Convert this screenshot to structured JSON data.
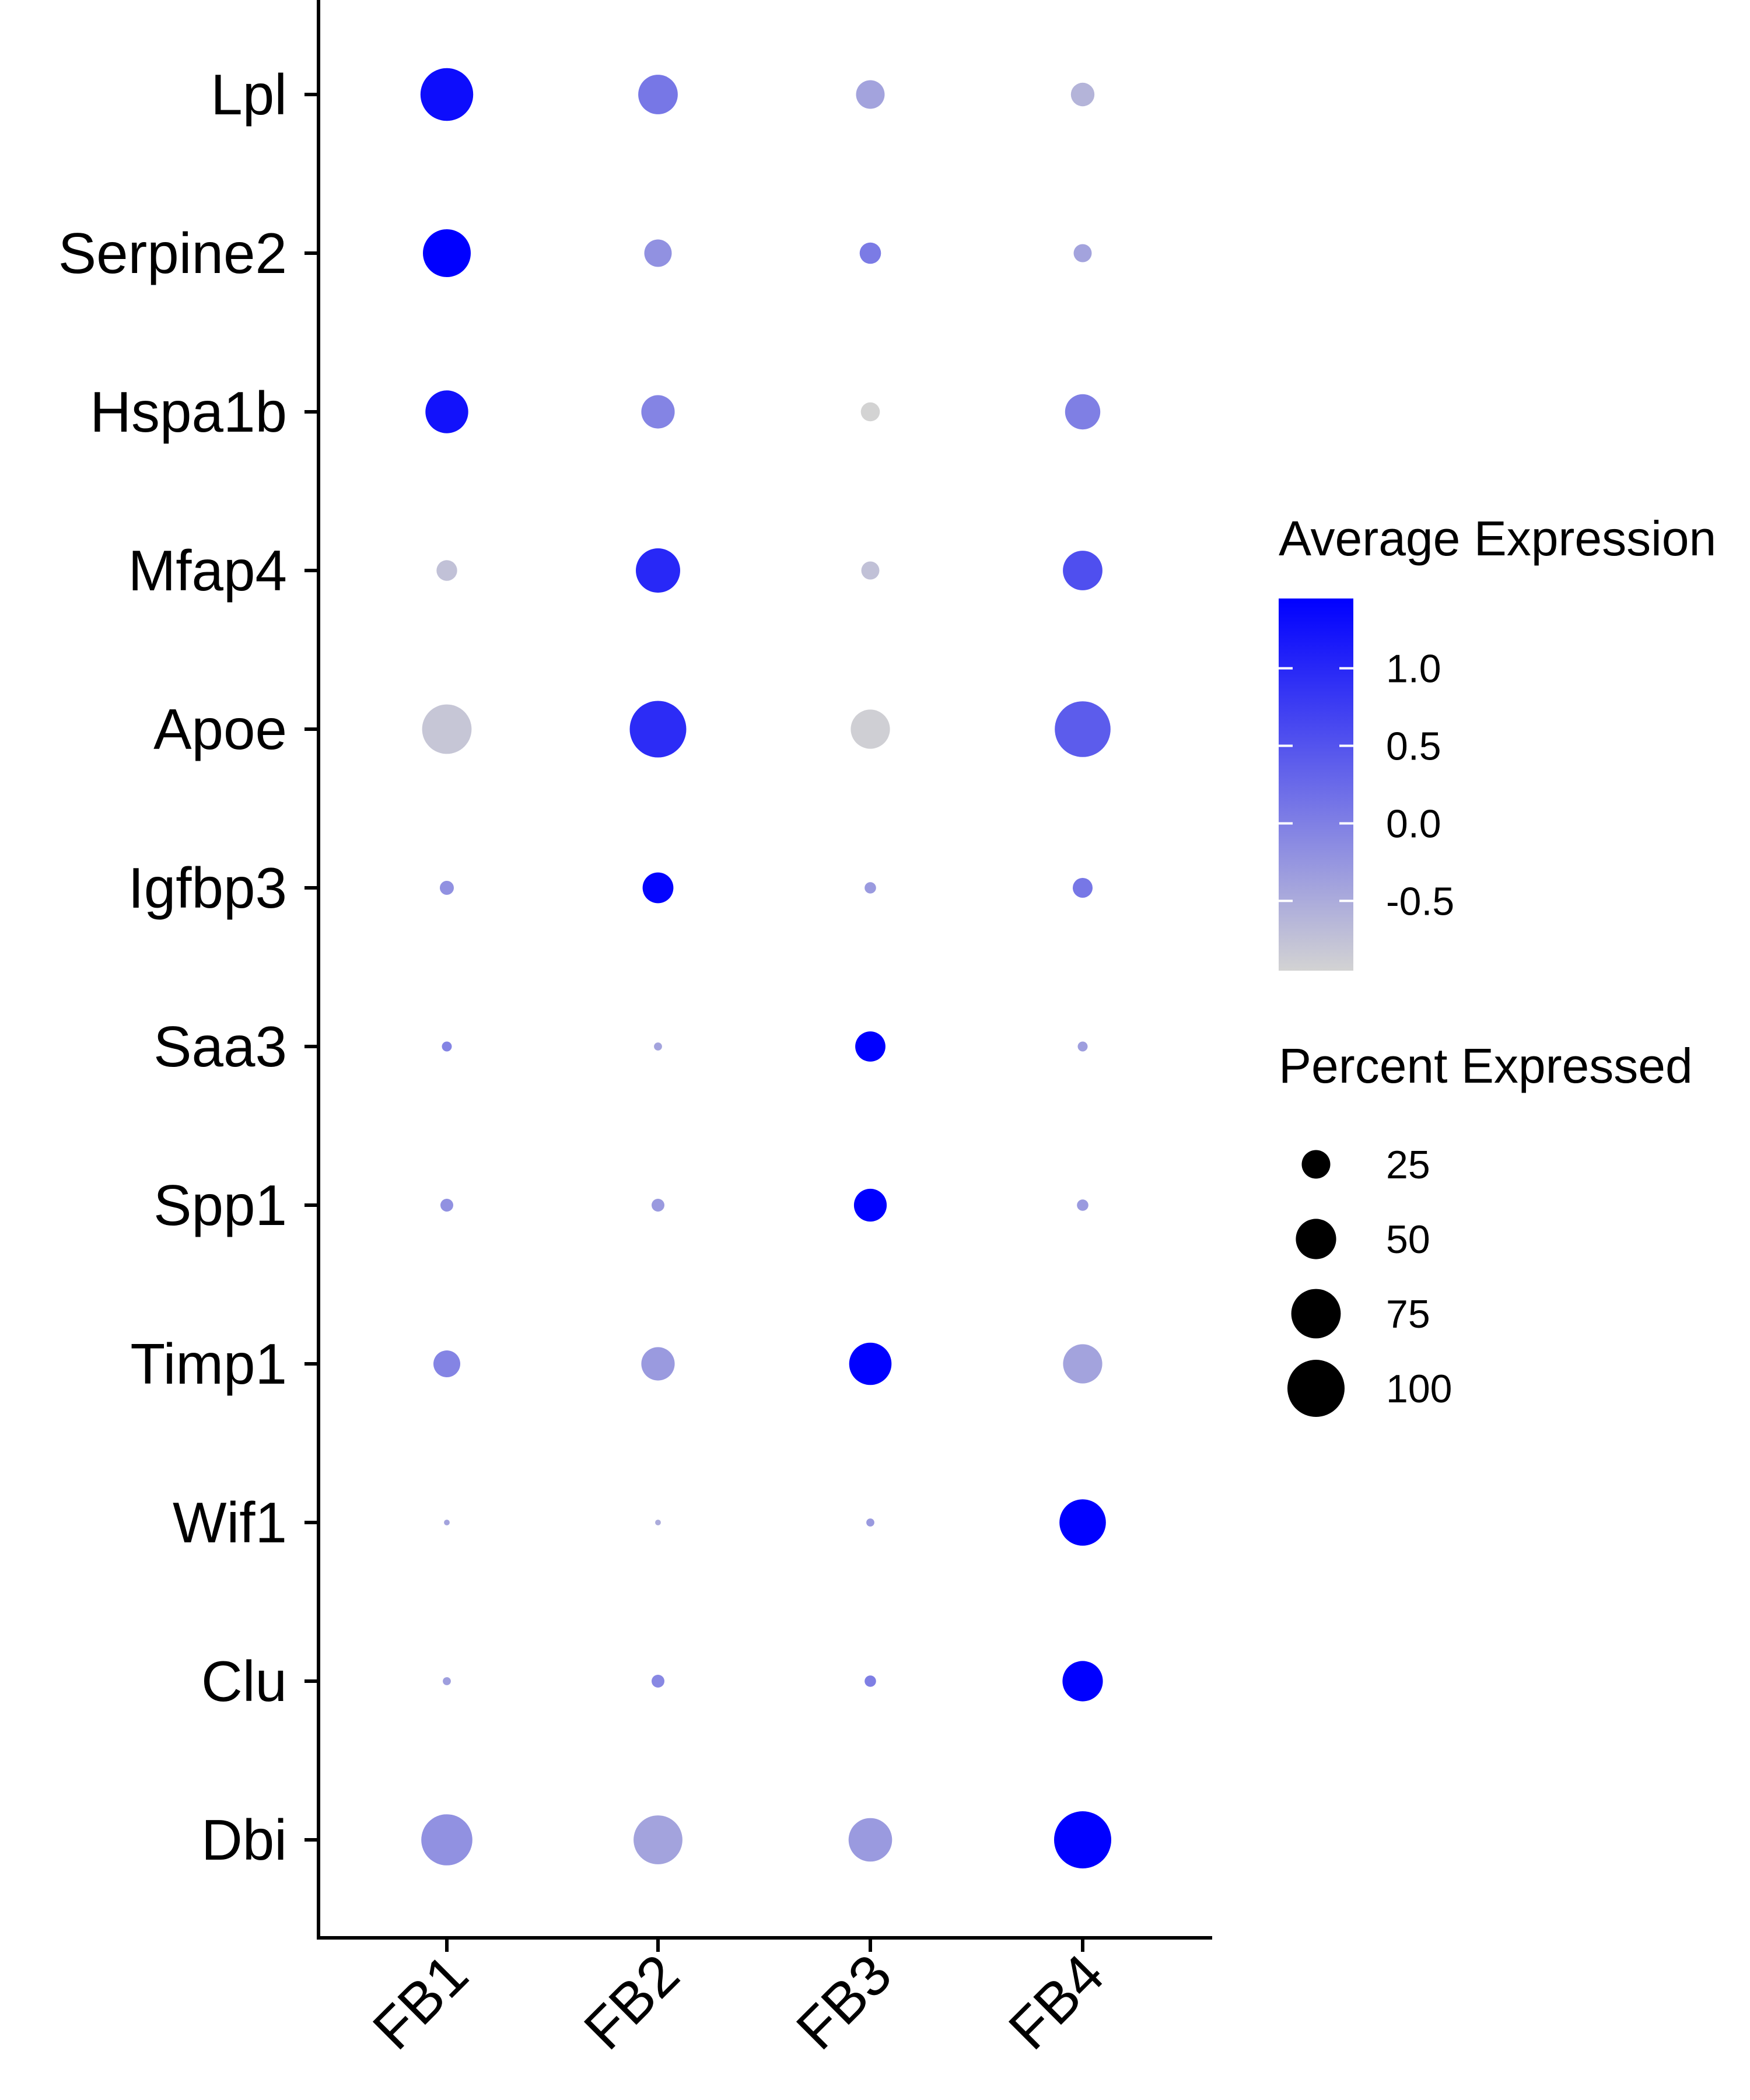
{
  "chart_data": {
    "type": "dotplot",
    "x_categories": [
      "FB1",
      "FB2",
      "FB3",
      "FB4"
    ],
    "y_categories": [
      "Lpl",
      "Serpine2",
      "Hspa1b",
      "Mfap4",
      "Apoe",
      "Igfbp3",
      "Saa3",
      "Spp1",
      "Timp1",
      "Wif1",
      "Clu",
      "Dbi"
    ],
    "color_variable": "Average Expression",
    "size_variable": "Percent Expressed",
    "color_low": "#D3D3D3",
    "color_high": "#0000FF",
    "color_range": [
      -0.95,
      1.45
    ],
    "color_ticks": [
      "1.0",
      "0.5",
      "0.0",
      "-0.5"
    ],
    "size_ticks": [
      "25",
      "50",
      "75",
      "100"
    ],
    "size_tick_values": [
      25,
      50,
      75,
      100
    ],
    "points": [
      {
        "gene": "Lpl",
        "values": [
          {
            "cluster": "FB1",
            "avg_exp": 1.3,
            "pct_exp": 85
          },
          {
            "cluster": "FB2",
            "avg_exp": 0.1,
            "pct_exp": 48
          },
          {
            "cluster": "FB3",
            "avg_exp": -0.4,
            "pct_exp": 25
          },
          {
            "cluster": "FB4",
            "avg_exp": -0.6,
            "pct_exp": 17
          }
        ]
      },
      {
        "gene": "Serpine2",
        "values": [
          {
            "cluster": "FB1",
            "avg_exp": 1.45,
            "pct_exp": 70
          },
          {
            "cluster": "FB2",
            "avg_exp": -0.2,
            "pct_exp": 23
          },
          {
            "cluster": "FB3",
            "avg_exp": 0.05,
            "pct_exp": 14
          },
          {
            "cluster": "FB4",
            "avg_exp": -0.4,
            "pct_exp": 10
          }
        ]
      },
      {
        "gene": "Hspa1b",
        "values": [
          {
            "cluster": "FB1",
            "avg_exp": 1.25,
            "pct_exp": 56
          },
          {
            "cluster": "FB2",
            "avg_exp": -0.05,
            "pct_exp": 34
          },
          {
            "cluster": "FB3",
            "avg_exp": -0.95,
            "pct_exp": 11
          },
          {
            "cluster": "FB4",
            "avg_exp": 0.0,
            "pct_exp": 38
          }
        ]
      },
      {
        "gene": "Mfap4",
        "values": [
          {
            "cluster": "FB1",
            "avg_exp": -0.75,
            "pct_exp": 13
          },
          {
            "cluster": "FB2",
            "avg_exp": 1.0,
            "pct_exp": 60
          },
          {
            "cluster": "FB3",
            "avg_exp": -0.75,
            "pct_exp": 10
          },
          {
            "cluster": "FB4",
            "avg_exp": 0.55,
            "pct_exp": 48
          }
        ]
      },
      {
        "gene": "Apoe",
        "values": [
          {
            "cluster": "FB1",
            "avg_exp": -0.8,
            "pct_exp": 75
          },
          {
            "cluster": "FB2",
            "avg_exp": 0.95,
            "pct_exp": 98
          },
          {
            "cluster": "FB3",
            "avg_exp": -0.9,
            "pct_exp": 47
          },
          {
            "cluster": "FB4",
            "avg_exp": 0.4,
            "pct_exp": 95
          }
        ]
      },
      {
        "gene": "Igfbp3",
        "values": [
          {
            "cluster": "FB1",
            "avg_exp": -0.2,
            "pct_exp": 6
          },
          {
            "cluster": "FB2",
            "avg_exp": 1.4,
            "pct_exp": 29
          },
          {
            "cluster": "FB3",
            "avg_exp": -0.3,
            "pct_exp": 4
          },
          {
            "cluster": "FB4",
            "avg_exp": 0.1,
            "pct_exp": 12
          }
        ]
      },
      {
        "gene": "Saa3",
        "values": [
          {
            "cluster": "FB1",
            "avg_exp": -0.05,
            "pct_exp": 3
          },
          {
            "cluster": "FB2",
            "avg_exp": -0.4,
            "pct_exp": 2
          },
          {
            "cluster": "FB3",
            "avg_exp": 1.45,
            "pct_exp": 28
          },
          {
            "cluster": "FB4",
            "avg_exp": -0.35,
            "pct_exp": 3
          }
        ]
      },
      {
        "gene": "Spp1",
        "values": [
          {
            "cluster": "FB1",
            "avg_exp": -0.2,
            "pct_exp": 5
          },
          {
            "cluster": "FB2",
            "avg_exp": -0.3,
            "pct_exp": 5
          },
          {
            "cluster": "FB3",
            "avg_exp": 1.45,
            "pct_exp": 33
          },
          {
            "cluster": "FB4",
            "avg_exp": -0.3,
            "pct_exp": 4
          }
        ]
      },
      {
        "gene": "Timp1",
        "values": [
          {
            "cluster": "FB1",
            "avg_exp": -0.05,
            "pct_exp": 22
          },
          {
            "cluster": "FB2",
            "avg_exp": -0.3,
            "pct_exp": 34
          },
          {
            "cluster": "FB3",
            "avg_exp": 1.45,
            "pct_exp": 55
          },
          {
            "cluster": "FB4",
            "avg_exp": -0.4,
            "pct_exp": 47
          }
        ]
      },
      {
        "gene": "Wif1",
        "values": [
          {
            "cluster": "FB1",
            "avg_exp": -0.4,
            "pct_exp": 1
          },
          {
            "cluster": "FB2",
            "avg_exp": -0.5,
            "pct_exp": 1
          },
          {
            "cluster": "FB3",
            "avg_exp": -0.3,
            "pct_exp": 2
          },
          {
            "cluster": "FB4",
            "avg_exp": 1.45,
            "pct_exp": 66
          }
        ]
      },
      {
        "gene": "Clu",
        "values": [
          {
            "cluster": "FB1",
            "avg_exp": -0.35,
            "pct_exp": 2
          },
          {
            "cluster": "FB2",
            "avg_exp": -0.1,
            "pct_exp": 5
          },
          {
            "cluster": "FB3",
            "avg_exp": 0.0,
            "pct_exp": 4
          },
          {
            "cluster": "FB4",
            "avg_exp": 1.45,
            "pct_exp": 50
          }
        ]
      },
      {
        "gene": "Dbi",
        "values": [
          {
            "cluster": "FB1",
            "avg_exp": -0.2,
            "pct_exp": 80
          },
          {
            "cluster": "FB2",
            "avg_exp": -0.4,
            "pct_exp": 73
          },
          {
            "cluster": "FB3",
            "avg_exp": -0.3,
            "pct_exp": 58
          },
          {
            "cluster": "FB4",
            "avg_exp": 1.45,
            "pct_exp": 100
          }
        ]
      }
    ]
  }
}
